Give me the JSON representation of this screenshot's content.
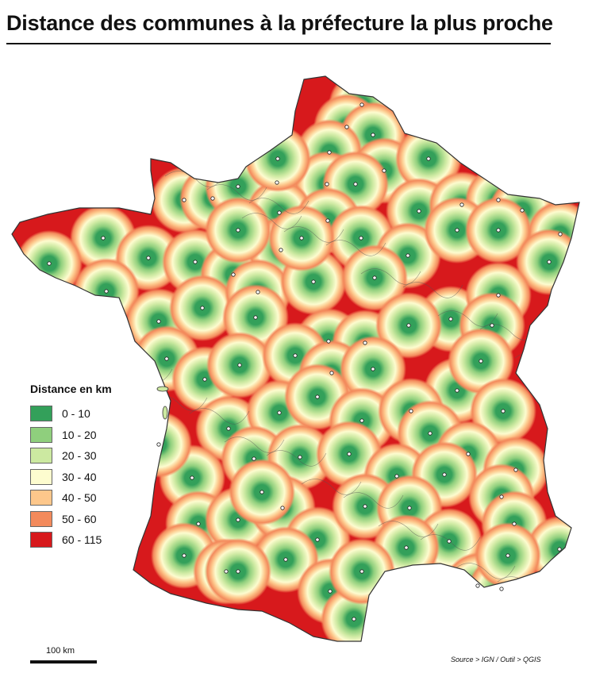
{
  "title": "Distance des communes à la préfecture la plus proche",
  "legend": {
    "title": "Distance en km",
    "items": [
      {
        "label": "0 - 10",
        "color": "#33a05a"
      },
      {
        "label": "10 - 20",
        "color": "#8fcf7d"
      },
      {
        "label": "20 - 30",
        "color": "#cce9a1"
      },
      {
        "label": "30 - 40",
        "color": "#fdfccf"
      },
      {
        "label": "40 - 50",
        "color": "#fdc78b"
      },
      {
        "label": "50 - 60",
        "color": "#f38a5c"
      },
      {
        "label": "60 - 115",
        "color": "#d7191c"
      }
    ]
  },
  "scale": {
    "label": "100 km"
  },
  "source": "Source > IGN / Outil > QGIS",
  "map": {
    "icon": "france-map-icon",
    "marker": "prefecture-marker-icon"
  }
}
